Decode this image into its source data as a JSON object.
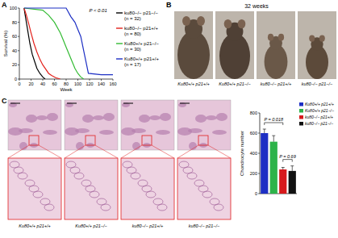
{
  "panel_labels": [
    "A",
    "B",
    "C"
  ],
  "chart_data": [
    {
      "type": "line",
      "xlabel": "Week",
      "ylabel": "Survival (%)",
      "annotation": "P < 0.01",
      "legend": "right",
      "xlim": [
        0,
        160
      ],
      "xticks": [
        0,
        20,
        40,
        60,
        80,
        100,
        120,
        140,
        160
      ],
      "ylim": [
        0,
        100
      ],
      "yticks": [
        0,
        20,
        40,
        60,
        80,
        100
      ],
      "series": [
        {
          "name": "ku80−/− p21−/−",
          "n_label": "(n = 32)",
          "color": "#000000",
          "x": [
            8,
            10,
            12,
            15,
            18,
            22,
            26,
            30,
            35,
            40,
            44
          ],
          "values": [
            100,
            90,
            80,
            65,
            50,
            35,
            25,
            15,
            8,
            3,
            0
          ]
        },
        {
          "name": "ku80−/− p21+/+",
          "n_label": "(n = 80)",
          "color": "#e3201b",
          "x": [
            8,
            12,
            16,
            20,
            25,
            30,
            35,
            40,
            45,
            50,
            55,
            62,
            70
          ],
          "values": [
            100,
            90,
            78,
            65,
            50,
            38,
            28,
            20,
            14,
            8,
            5,
            2,
            0
          ]
        },
        {
          "name": "Ku80+/+ p21−/−",
          "n_label": "(n = 30)",
          "color": "#33bb33",
          "x": [
            8,
            40,
            50,
            60,
            70,
            75,
            80,
            85,
            90,
            95,
            100,
            105,
            110
          ],
          "values": [
            100,
            97,
            90,
            80,
            65,
            55,
            45,
            35,
            25,
            15,
            8,
            3,
            0
          ]
        },
        {
          "name": "Ku80+/+ p21+/+",
          "n_label": "(n = 17)",
          "color": "#1d2fc4",
          "x": [
            8,
            80,
            88,
            95,
            100,
            105,
            110,
            115,
            118,
            140,
            160
          ],
          "values": [
            100,
            100,
            88,
            80,
            70,
            60,
            40,
            20,
            8,
            6,
            6
          ]
        }
      ]
    },
    {
      "type": "bar",
      "ylabel": "Chondrocyte number",
      "legend": "upper right",
      "tick_labels": "y",
      "categories": [
        "Ku80+/+ p21+/+",
        "Ku80+/+ p21−/−",
        "ku80−/− p21+/+",
        "ku80−/− p21−/−"
      ],
      "values": [
        600,
        515,
        240,
        225
      ],
      "errors": [
        40,
        60,
        20,
        50
      ],
      "colors": [
        "#1d2fc4",
        "#2db34a",
        "#d7191c",
        "#111111"
      ],
      "ylim": [
        0,
        800
      ],
      "yticks": [
        0,
        200,
        400,
        600,
        800
      ],
      "annotations": [
        "P = 0.018",
        "P = 0.69"
      ]
    }
  ],
  "panel_b": {
    "caption": "32 weeks",
    "labels": [
      "Ku80+/+ p21+/+",
      "Ku80+/+ p21−/−",
      "ku80−/− p21+/+",
      "ku80−/− p21−/−"
    ]
  },
  "panel_c": {
    "labels": [
      "Ku80+/+ p21+/+",
      "Ku80+/+ p21−/−",
      "ku80−/− p21+/+",
      "ku80−/− p21−/−"
    ]
  }
}
